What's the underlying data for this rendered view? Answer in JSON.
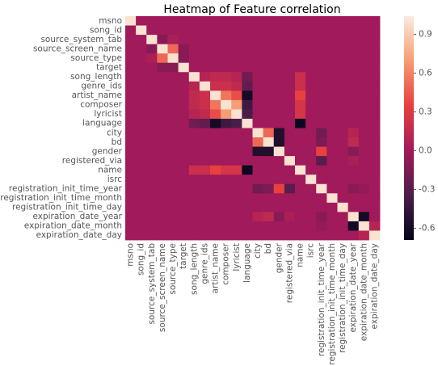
{
  "chart_data": {
    "type": "heatmap",
    "title": "Heatmap of Feature correlation",
    "categories": [
      "msno",
      "song_id",
      "source_system_tab",
      "source_screen_name",
      "source_type",
      "target",
      "song_length",
      "genre_ids",
      "artist_name",
      "composer",
      "lyricist",
      "language",
      "city",
      "bd",
      "gender",
      "registered_via",
      "name",
      "isrc",
      "registration_init_time_year",
      "registration_init_time_month",
      "registration_init_time_day",
      "expiration_date_year",
      "expiration_date_month",
      "expiration_date_day"
    ],
    "values": [
      [
        1,
        0,
        0,
        0,
        0,
        0,
        0,
        0,
        0,
        0,
        0,
        0,
        0,
        0,
        0,
        0,
        0,
        0,
        0,
        0,
        0,
        0,
        0,
        0
      ],
      [
        0,
        1,
        0,
        0,
        0,
        0,
        0,
        0,
        0,
        0,
        0,
        0,
        0,
        0,
        0,
        0,
        0,
        0,
        0,
        0,
        0,
        0,
        0,
        0
      ],
      [
        0,
        0,
        1,
        -0.1,
        0.05,
        0,
        0,
        0,
        0,
        0,
        0,
        0,
        0,
        0,
        0,
        0,
        0,
        0,
        0,
        0,
        0,
        0,
        0,
        0
      ],
      [
        0,
        0,
        -0.1,
        1,
        0.5,
        -0.1,
        0,
        0,
        0,
        0,
        0,
        0,
        0,
        0,
        0,
        0,
        0,
        0,
        0,
        0,
        0,
        0,
        0,
        0
      ],
      [
        0,
        0,
        0.05,
        0.5,
        1,
        -0.1,
        0,
        0,
        0,
        0,
        0,
        0,
        0,
        0,
        0,
        0,
        0,
        0,
        0,
        0,
        0,
        0,
        0,
        0
      ],
      [
        0,
        0,
        0,
        -0.1,
        -0.1,
        1,
        0,
        0,
        0,
        0,
        0,
        0,
        0,
        0,
        0,
        0,
        0,
        0,
        0,
        0,
        0,
        0,
        0,
        0
      ],
      [
        0,
        0,
        0,
        0,
        0,
        0,
        1,
        0.1,
        0.15,
        0.15,
        0.1,
        -0.2,
        0,
        0,
        0,
        0,
        0.2,
        0,
        0,
        0,
        0,
        0,
        0,
        0
      ],
      [
        0,
        0,
        0,
        0,
        0,
        0,
        0.1,
        1,
        0.2,
        0.2,
        0.15,
        -0.25,
        0,
        0,
        0,
        0,
        0.2,
        0,
        0,
        0,
        0,
        0,
        0,
        0
      ],
      [
        0,
        0,
        0,
        0,
        0,
        0,
        0.15,
        0.2,
        1,
        0.55,
        0.4,
        -0.6,
        0,
        0,
        0,
        0,
        0.35,
        0,
        0,
        0,
        0,
        0,
        0,
        0
      ],
      [
        0,
        0,
        0,
        0,
        0,
        0,
        0.15,
        0.2,
        0.55,
        1,
        0.7,
        -0.4,
        0,
        0,
        0,
        0,
        0.25,
        0,
        0,
        0,
        0,
        0,
        0,
        0
      ],
      [
        0,
        0,
        0,
        0,
        0,
        0,
        0.1,
        0.15,
        0.4,
        0.7,
        1,
        -0.35,
        0,
        0,
        0,
        0,
        0.25,
        0,
        0,
        0,
        0,
        0,
        0,
        0
      ],
      [
        0,
        0,
        0,
        0,
        0,
        0,
        -0.2,
        -0.25,
        -0.6,
        -0.4,
        -0.35,
        1,
        0,
        0,
        0,
        0,
        -0.65,
        0,
        0,
        0,
        0,
        0,
        0,
        0
      ],
      [
        0,
        0,
        0,
        0,
        0,
        0,
        0,
        0,
        0,
        0,
        0,
        0,
        1,
        0.5,
        -0.55,
        0,
        0,
        0,
        -0.2,
        0,
        0,
        0.1,
        0,
        0
      ],
      [
        0,
        0,
        0,
        0,
        0,
        0,
        0,
        0,
        0,
        0,
        0,
        0,
        0.5,
        1,
        -0.55,
        0,
        0,
        0,
        -0.15,
        0,
        0,
        0.15,
        0,
        0
      ],
      [
        0,
        0,
        0,
        0,
        0,
        0,
        0,
        0,
        0,
        0,
        0,
        0,
        -0.55,
        -0.55,
        1,
        0,
        0,
        0,
        0.35,
        0,
        0,
        -0.1,
        0,
        0
      ],
      [
        0,
        0,
        0,
        0,
        0,
        0,
        0,
        0,
        0,
        0,
        0,
        0,
        0,
        0,
        0,
        1,
        0,
        0,
        -0.3,
        0,
        0,
        0.05,
        0,
        0
      ],
      [
        0,
        0,
        0,
        0,
        0,
        0,
        0.2,
        0.2,
        0.35,
        0.25,
        0.25,
        -0.65,
        0,
        0,
        0,
        0,
        1,
        0,
        0,
        0,
        0,
        0,
        0,
        0
      ],
      [
        0,
        0,
        0,
        0,
        0,
        0,
        0,
        0,
        0,
        0,
        0,
        0,
        0,
        0,
        0,
        0,
        0,
        1,
        0,
        0,
        0,
        0,
        0,
        0
      ],
      [
        0,
        0,
        0,
        0,
        0,
        0,
        0,
        0,
        0,
        0,
        0,
        0,
        -0.2,
        -0.15,
        0.35,
        -0.3,
        0,
        0,
        1,
        0,
        0,
        -0.1,
        -0.05,
        0
      ],
      [
        0,
        0,
        0,
        0,
        0,
        0,
        0,
        0,
        0,
        0,
        0,
        0,
        0,
        0,
        0,
        0,
        0,
        0,
        0,
        1,
        0,
        0,
        0,
        0
      ],
      [
        0,
        0,
        0,
        0,
        0,
        0,
        0,
        0,
        0,
        0,
        0,
        0,
        0,
        0,
        0,
        0,
        0,
        0,
        0,
        0,
        1,
        0,
        0,
        0
      ],
      [
        0,
        0,
        0,
        0,
        0,
        0,
        0,
        0,
        0,
        0,
        0,
        0,
        0.1,
        0.15,
        -0.1,
        0.05,
        0,
        0,
        -0.1,
        0,
        0,
        1,
        -0.6,
        0
      ],
      [
        0,
        0,
        0,
        0,
        0,
        0,
        0,
        0,
        0,
        0,
        0,
        0,
        0,
        0,
        0,
        0,
        0,
        0,
        -0.05,
        0,
        0,
        -0.6,
        1,
        0.1
      ],
      [
        0,
        0,
        0,
        0,
        0,
        0,
        0,
        0,
        0,
        0,
        0,
        0,
        0,
        0,
        0,
        0,
        0,
        0,
        0,
        0,
        0,
        0,
        0.1,
        1
      ]
    ],
    "vlim": [
      -0.69,
      1.04
    ],
    "colorbar_ticks": [
      0.9,
      0.6,
      0.3,
      {
        "value": 0,
        "label": "0.0"
      },
      -0.3,
      -0.6
    ],
    "colorscale": [
      "#03051a",
      "#4c1d4b",
      "#a11a5b",
      "#e83f3f",
      "#f69c73",
      "#faebdd"
    ]
  }
}
